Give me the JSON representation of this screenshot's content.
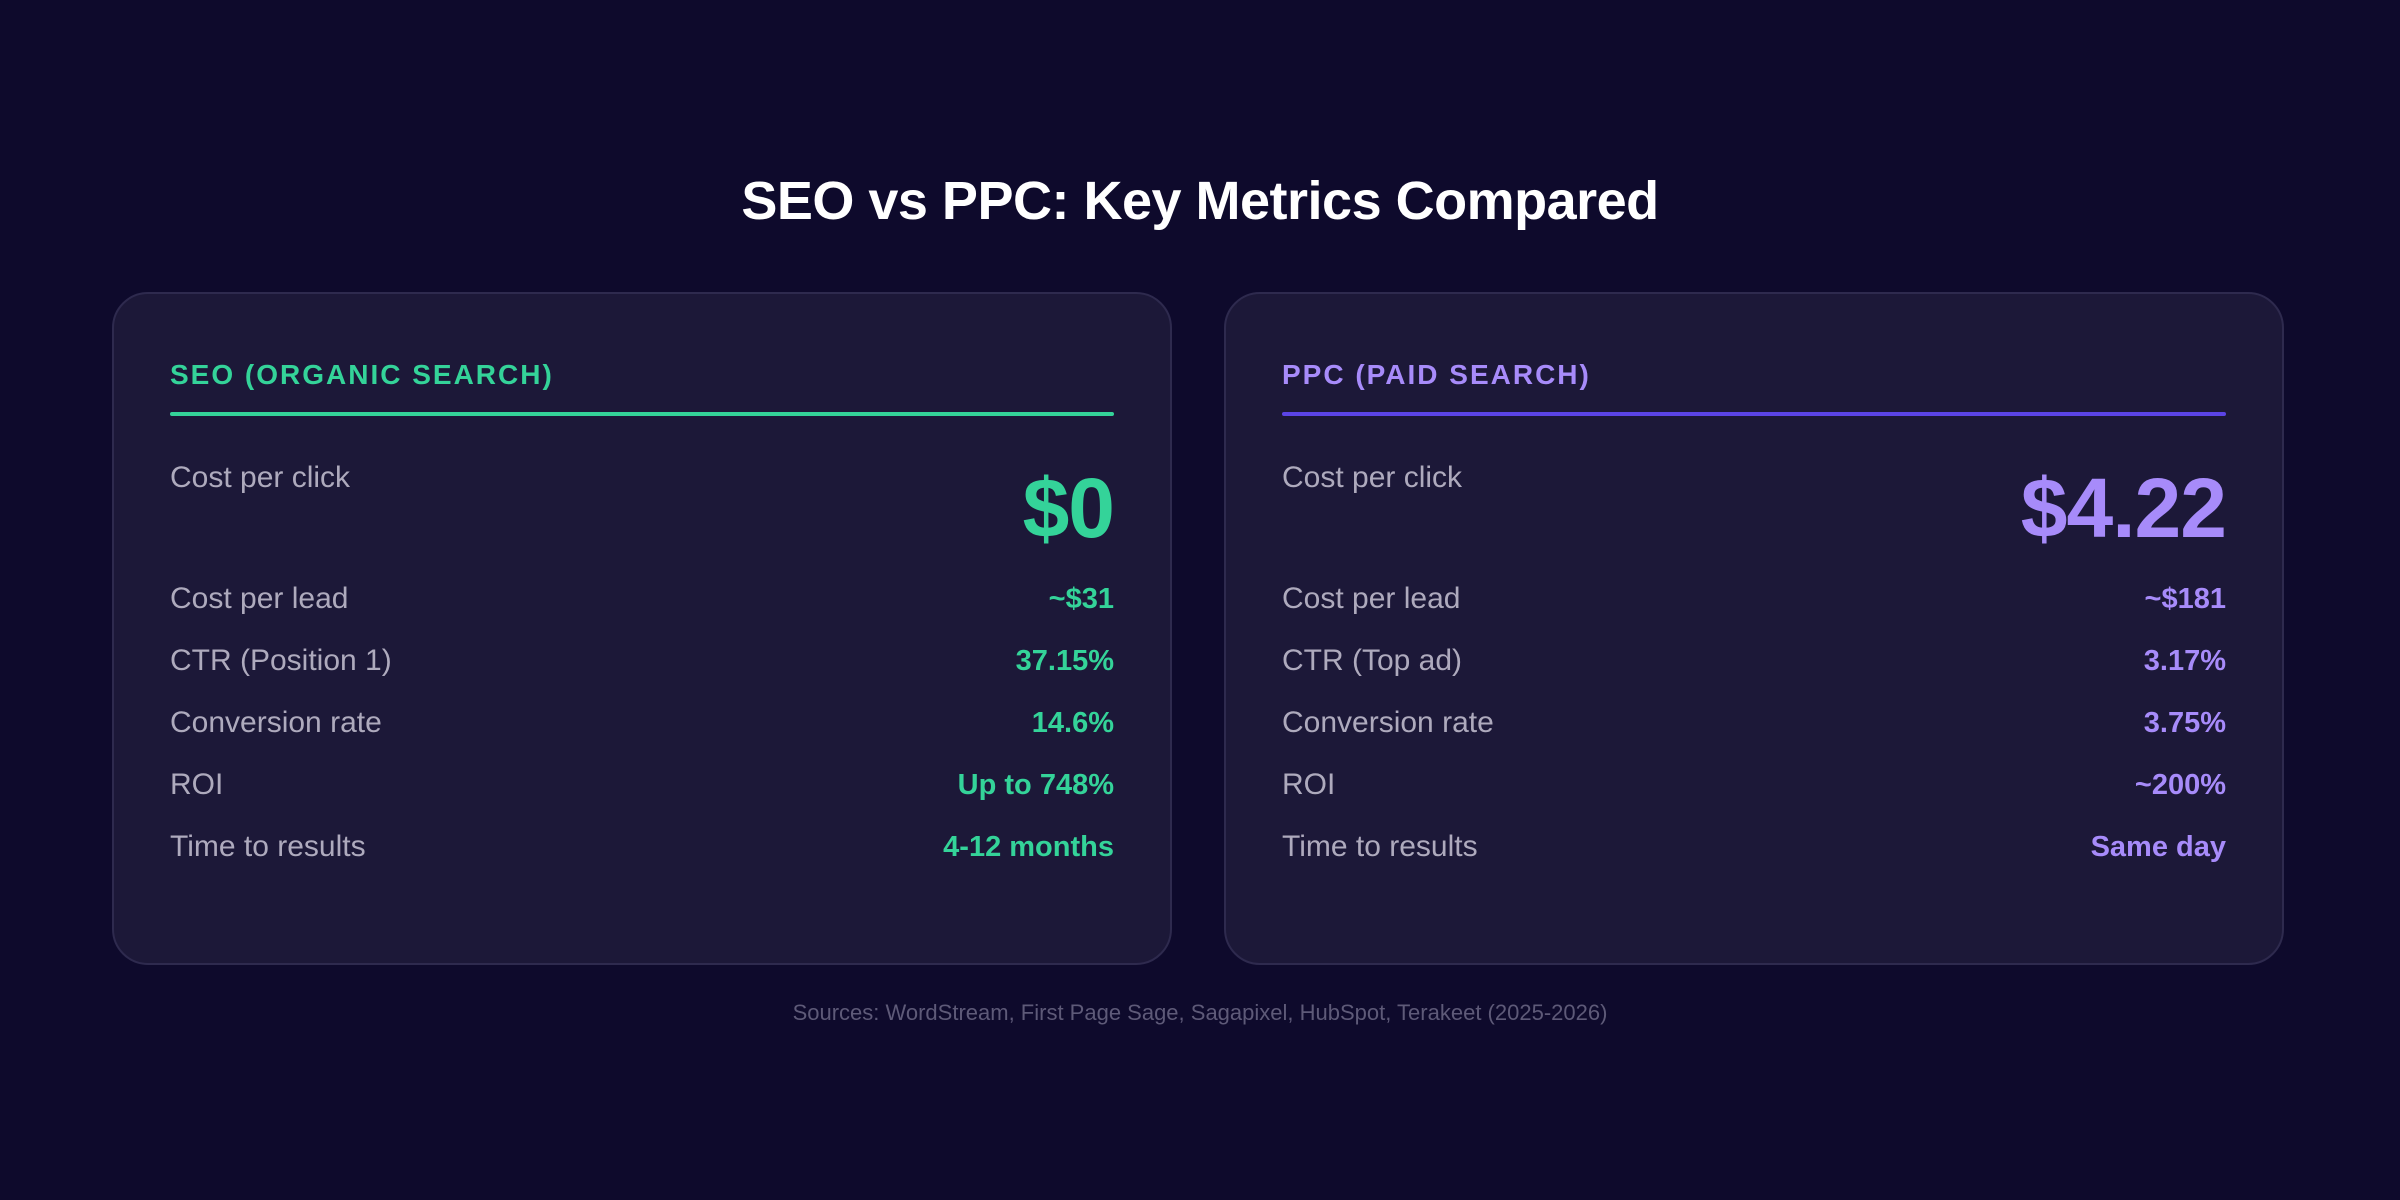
{
  "title": "SEO vs PPC: Key Metrics Compared",
  "colors": {
    "background": "#0e0a2c",
    "card": "#1c1838",
    "seo_accent": "#34d399",
    "ppc_accent": "#a78bfa",
    "ppc_rule": "#5b44e6",
    "label": "#aeaabd",
    "footnote": "#5e5a78"
  },
  "seo": {
    "header": "SEO (ORGANIC SEARCH)",
    "hero": {
      "label": "Cost per click",
      "value": "$0"
    },
    "metrics": [
      {
        "label": "Cost per lead",
        "value": "~$31"
      },
      {
        "label": "CTR (Position 1)",
        "value": "37.15%"
      },
      {
        "label": "Conversion rate",
        "value": "14.6%"
      },
      {
        "label": "ROI",
        "value": "Up to 748%"
      },
      {
        "label": "Time to results",
        "value": "4-12 months"
      }
    ]
  },
  "ppc": {
    "header": "PPC (PAID SEARCH)",
    "hero": {
      "label": "Cost per click",
      "value": "$4.22"
    },
    "metrics": [
      {
        "label": "Cost per lead",
        "value": "~$181"
      },
      {
        "label": "CTR (Top ad)",
        "value": "3.17%"
      },
      {
        "label": "Conversion rate",
        "value": "3.75%"
      },
      {
        "label": "ROI",
        "value": "~200%"
      },
      {
        "label": "Time to results",
        "value": "Same day"
      }
    ]
  },
  "sources": "Sources: WordStream, First Page Sage, Sagapixel, HubSpot, Terakeet (2025-2026)"
}
